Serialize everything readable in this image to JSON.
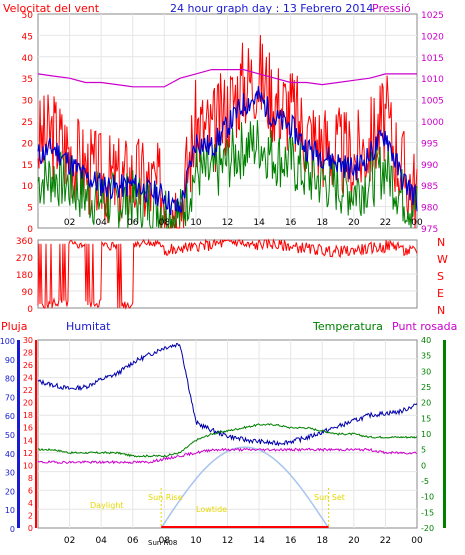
{
  "header": {
    "title": "24 hour graph day : 13 Febrero 2014",
    "left_label": "Velocitat del vent",
    "right_label": "Pressió"
  },
  "x_ticks": [
    "02",
    "04",
    "06",
    "08",
    "10",
    "12",
    "14",
    "16",
    "18",
    "20",
    "22",
    "00"
  ],
  "wind_panel": {
    "left_ticks": [
      "50",
      "45",
      "40",
      "35",
      "30",
      "25",
      "20",
      "15",
      "10",
      "5",
      "0"
    ],
    "right_ticks": [
      "1025",
      "1020",
      "1015",
      "1010",
      "1005",
      "1000",
      "995",
      "990",
      "985",
      "980",
      "975"
    ]
  },
  "direction_panel": {
    "left_ticks": [
      "360",
      "270",
      "180",
      "90",
      "0"
    ],
    "compass": [
      "N",
      "W",
      "S",
      "E",
      "N"
    ]
  },
  "bottom_panel": {
    "label_rain": "Pluja",
    "label_humidity": "Humitat",
    "label_temperature": "Temperatura",
    "label_dewpoint": "Punt rosada",
    "humidity_ticks": [
      "100",
      "90",
      "80",
      "70",
      "60",
      "50",
      "40",
      "30",
      "20",
      "10",
      "0"
    ],
    "rain_ticks": [
      "30",
      "28",
      "26",
      "24",
      "22",
      "20",
      "18",
      "16",
      "14",
      "12",
      "10",
      "8",
      "6",
      "4",
      "2",
      "0"
    ],
    "temp_ticks": [
      "40",
      "35",
      "30",
      "25",
      "20",
      "15",
      "10",
      "5",
      "0",
      "-5",
      "-10",
      "-15",
      "-20"
    ],
    "sun_labels": {
      "daylight": "Daylight",
      "sunrise": "Sun Rise",
      "sunset": "Sun Set",
      "lowtide": "Lowtide",
      "sunrise_time": "Sun R08"
    }
  },
  "colors": {
    "wind": "#ff0000",
    "wind_avg": "#0000cc",
    "gust": "#008000",
    "pressure": "#cc00cc",
    "temp": "#008000",
    "humidity": "#0000aa",
    "dew": "#cc00cc",
    "sun": "#a8c4ee",
    "daylabel": "#e6d800"
  },
  "chart_data": [
    {
      "type": "line",
      "title": "24 hour graph day : 13 Febrero 2014",
      "x_hours": [
        0,
        1,
        2,
        3,
        4,
        5,
        6,
        7,
        8,
        8.5,
        9,
        10,
        11,
        12,
        13,
        14,
        15,
        16,
        17,
        18,
        19,
        20,
        21,
        22,
        23,
        24
      ],
      "series": [
        {
          "name": "Velocitat del vent",
          "axis": "left",
          "values": [
            20,
            22,
            18,
            14,
            12,
            11,
            12,
            10,
            9,
            6,
            5,
            24,
            22,
            28,
            34,
            36,
            30,
            28,
            22,
            20,
            18,
            16,
            20,
            26,
            14,
            8
          ]
        },
        {
          "name": "Pressió",
          "axis": "right",
          "values": [
            1011,
            1010.5,
            1010,
            1009,
            1009,
            1008.5,
            1008,
            1008,
            1008,
            1009,
            1010,
            1011,
            1012,
            1012,
            1012,
            1011,
            1010,
            1009,
            1009,
            1008.5,
            1009,
            1009.5,
            1010,
            1011,
            1011,
            1011
          ]
        }
      ],
      "ylim_left": [
        0,
        50
      ],
      "ylim_right": [
        975,
        1025
      ]
    },
    {
      "type": "line",
      "title": "",
      "x_hours": [
        0,
        1,
        2,
        3,
        4,
        5,
        6,
        7,
        8,
        9,
        10,
        11,
        12,
        13,
        14,
        15,
        16,
        17,
        18,
        19,
        20,
        21,
        22,
        23,
        24
      ],
      "series": [
        {
          "name": "",
          "values": [
            20,
            30,
            340,
            30,
            330,
            20,
            350,
            340,
            300,
            320,
            330,
            340,
            350,
            330,
            340,
            330,
            320,
            310,
            300,
            300,
            310,
            320,
            330,
            300,
            310
          ]
        }
      ],
      "ylim": [
        0,
        360
      ]
    },
    {
      "type": "line",
      "title": "",
      "x_hours": [
        0,
        1,
        2,
        3,
        4,
        5,
        6,
        7,
        8,
        9,
        10,
        11,
        12,
        13,
        14,
        15,
        16,
        17,
        18,
        19,
        20,
        21,
        22,
        23,
        24
      ],
      "series": [
        {
          "name": "Humitat",
          "axis": "humidity",
          "values": [
            78,
            76,
            74,
            75,
            79,
            82,
            88,
            92,
            96,
            98,
            56,
            52,
            49,
            47,
            46,
            45,
            46,
            48,
            51,
            54,
            57,
            60,
            61,
            62,
            66
          ]
        },
        {
          "name": "Temperatura",
          "axis": "temp",
          "values": [
            5,
            5,
            4,
            4,
            4,
            4,
            3,
            3,
            3,
            4,
            8,
            10,
            11,
            12,
            13,
            13,
            12,
            12,
            11,
            10,
            10,
            9,
            9,
            9,
            9
          ]
        },
        {
          "name": "Punt rosada",
          "axis": "temp",
          "values": [
            1,
            1,
            1,
            1,
            1,
            1,
            1,
            1,
            2,
            3,
            4,
            5,
            5,
            5,
            5,
            5,
            5,
            5,
            5,
            5,
            5,
            5,
            4,
            4,
            4
          ]
        }
      ],
      "ylim_humidity": [
        0,
        100
      ],
      "ylim_temp": [
        -20,
        40
      ]
    }
  ]
}
